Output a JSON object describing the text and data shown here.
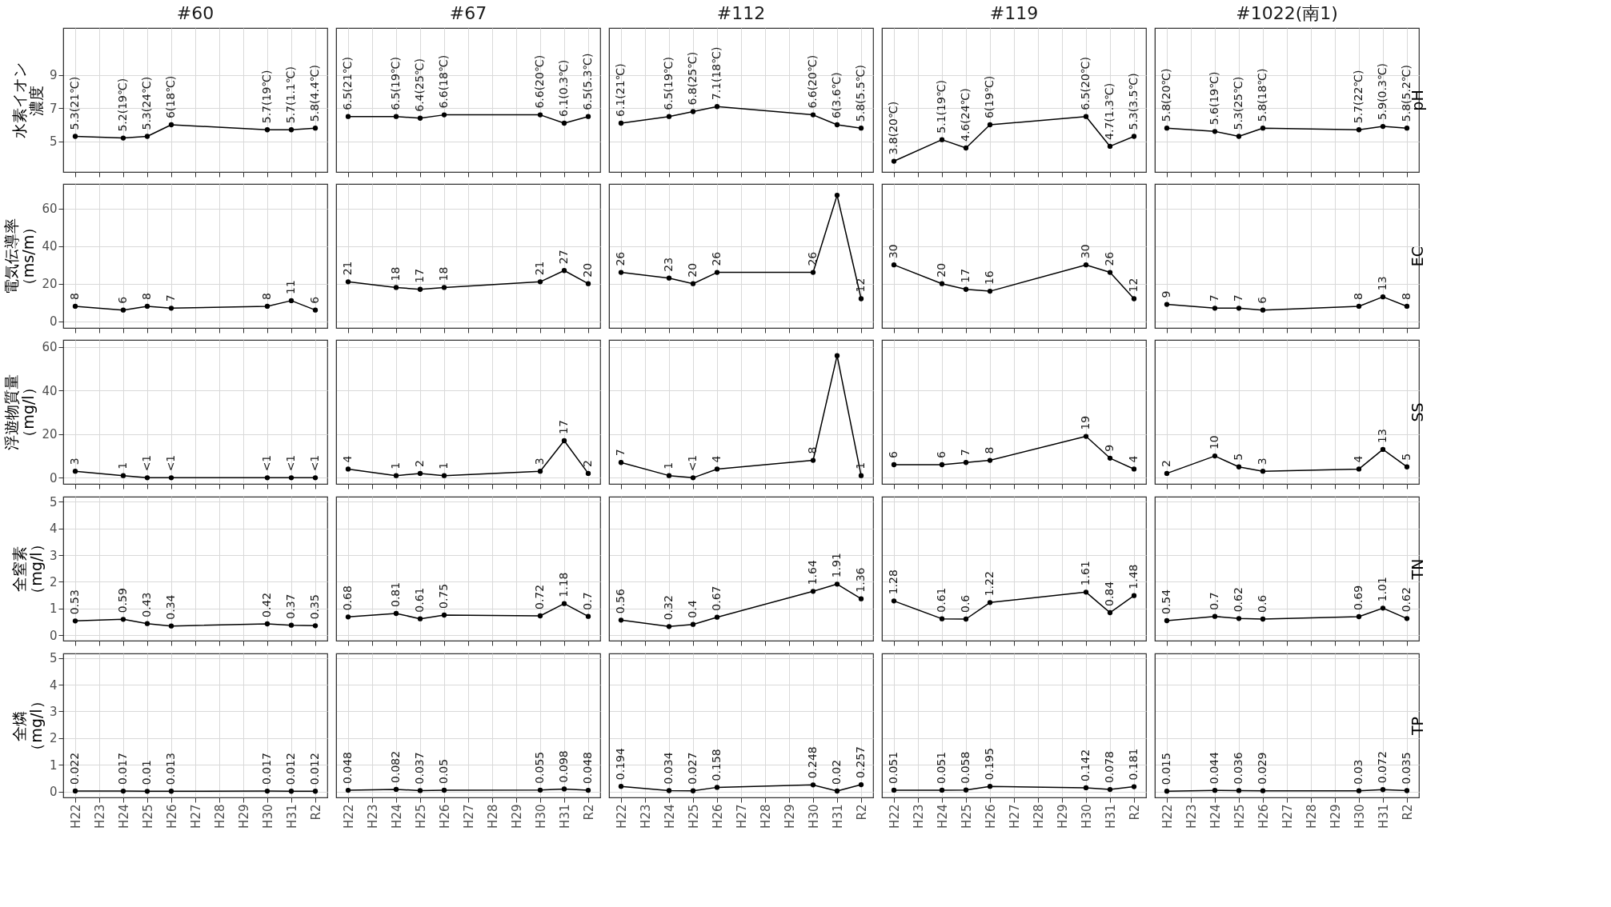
{
  "chart_data": [
    {
      "type": "line",
      "title": "#60",
      "ylabel": "水素イオン濃度",
      "tick_labels": "y",
      "categories": [
        "H22",
        "H23",
        "H24",
        "H25",
        "H26",
        "H27",
        "H28",
        "H29",
        "H30",
        "H31",
        "R2"
      ],
      "values": [
        5.3,
        null,
        5.2,
        5.3,
        6,
        null,
        null,
        null,
        5.7,
        5.7,
        5.8
      ],
      "value_labels": [
        "5.3(21℃)",
        null,
        "5.2(19℃)",
        "5.3(24℃)",
        "6(18℃)",
        null,
        null,
        null,
        "5.7(19℃)",
        "5.7(1.1℃)",
        "5.8(4.4℃)"
      ],
      "color": "#000000",
      "marker": "circle",
      "grid": true,
      "ylim": [
        3.15,
        11.85
      ],
      "yticks": [
        5,
        7,
        9
      ]
    },
    {
      "type": "line",
      "title": "#67",
      "tick_labels": false,
      "categories": [
        "H22",
        "H23",
        "H24",
        "H25",
        "H26",
        "H27",
        "H28",
        "H29",
        "H30",
        "H31",
        "R2"
      ],
      "values": [
        6.5,
        null,
        6.5,
        6.4,
        6.6,
        null,
        null,
        null,
        6.6,
        6.1,
        6.5
      ],
      "value_labels": [
        "6.5(21℃)",
        null,
        "6.5(19℃)",
        "6.4(25℃)",
        "6.6(18℃)",
        null,
        null,
        null,
        "6.6(20℃)",
        "6.1(0.3℃)",
        "6.5(5.3℃)"
      ],
      "color": "#000000",
      "marker": "circle",
      "grid": true,
      "ylim": [
        3.15,
        11.85
      ],
      "yticks": [
        5,
        7,
        9
      ]
    },
    {
      "type": "line",
      "title": "#112",
      "tick_labels": false,
      "categories": [
        "H22",
        "H23",
        "H24",
        "H25",
        "H26",
        "H27",
        "H28",
        "H29",
        "H30",
        "H31",
        "R2"
      ],
      "values": [
        6.1,
        null,
        6.5,
        6.8,
        7.1,
        null,
        null,
        null,
        6.6,
        6,
        5.8
      ],
      "value_labels": [
        "6.1(21℃)",
        null,
        "6.5(19℃)",
        "6.8(25℃)",
        "7.1(18℃)",
        null,
        null,
        null,
        "6.6(20℃)",
        "6(3.6℃)",
        "5.8(5.5℃)"
      ],
      "color": "#000000",
      "marker": "circle",
      "grid": true,
      "ylim": [
        3.15,
        11.85
      ],
      "yticks": [
        5,
        7,
        9
      ]
    },
    {
      "type": "line",
      "title": "#119",
      "tick_labels": false,
      "categories": [
        "H22",
        "H23",
        "H24",
        "H25",
        "H26",
        "H27",
        "H28",
        "H29",
        "H30",
        "H31",
        "R2"
      ],
      "values": [
        3.8,
        null,
        5.1,
        4.6,
        6,
        null,
        null,
        null,
        6.5,
        4.7,
        5.3
      ],
      "value_labels": [
        "3.8(20℃)",
        null,
        "5.1(19℃)",
        "4.6(24℃)",
        "6(19℃)",
        null,
        null,
        null,
        "6.5(20℃)",
        "4.7(1.3℃)",
        "5.3(3.5℃)"
      ],
      "color": "#000000",
      "marker": "circle",
      "grid": true,
      "ylim": [
        3.15,
        11.85
      ],
      "yticks": [
        5,
        7,
        9
      ]
    },
    {
      "type": "line",
      "title": "#1022(南1)",
      "y2label": "pH",
      "tick_labels": false,
      "categories": [
        "H22",
        "H23",
        "H24",
        "H25",
        "H26",
        "H27",
        "H28",
        "H29",
        "H30",
        "H31",
        "R2"
      ],
      "values": [
        5.8,
        null,
        5.6,
        5.3,
        5.8,
        null,
        null,
        null,
        5.7,
        5.9,
        5.8
      ],
      "value_labels": [
        "5.8(20℃)",
        null,
        "5.6(19℃)",
        "5.3(25℃)",
        "5.8(18℃)",
        null,
        null,
        null,
        "5.7(22℃)",
        "5.9(0.3℃)",
        "5.8(5.2℃)"
      ],
      "color": "#000000",
      "marker": "circle",
      "grid": true,
      "ylim": [
        3.15,
        11.85
      ],
      "yticks": [
        5,
        7,
        9
      ]
    },
    {
      "type": "line",
      "ylabel": "電気伝導率（ms/m）",
      "tick_labels": "y",
      "categories": [
        "H22",
        "H23",
        "H24",
        "H25",
        "H26",
        "H27",
        "H28",
        "H29",
        "H30",
        "H31",
        "R2"
      ],
      "values": [
        8,
        null,
        6,
        8,
        7,
        null,
        null,
        null,
        8,
        11,
        6
      ],
      "value_labels": [
        "8",
        null,
        "6",
        "8",
        "7",
        null,
        null,
        null,
        "8",
        "11",
        "6"
      ],
      "color": "#000000",
      "marker": "circle",
      "grid": true,
      "ylim": [
        -3.5,
        73
      ],
      "yticks": [
        0,
        20,
        40,
        60
      ]
    },
    {
      "type": "line",
      "tick_labels": false,
      "categories": [
        "H22",
        "H23",
        "H24",
        "H25",
        "H26",
        "H27",
        "H28",
        "H29",
        "H30",
        "H31",
        "R2"
      ],
      "values": [
        21,
        null,
        18,
        17,
        18,
        null,
        null,
        null,
        21,
        27,
        20
      ],
      "value_labels": [
        "21",
        null,
        "18",
        "17",
        "18",
        null,
        null,
        null,
        "21",
        "27",
        "20"
      ],
      "color": "#000000",
      "marker": "circle",
      "grid": true,
      "ylim": [
        -3.5,
        73
      ],
      "yticks": [
        0,
        20,
        40,
        60
      ]
    },
    {
      "type": "line",
      "tick_labels": false,
      "categories": [
        "H22",
        "H23",
        "H24",
        "H25",
        "H26",
        "H27",
        "H28",
        "H29",
        "H30",
        "H31",
        "R2"
      ],
      "values": [
        26,
        null,
        23,
        20,
        26,
        null,
        null,
        null,
        26,
        67,
        12
      ],
      "value_labels": [
        "26",
        null,
        "23",
        "20",
        "26",
        null,
        null,
        null,
        "26",
        null,
        "12"
      ],
      "color": "#000000",
      "marker": "circle",
      "grid": true,
      "ylim": [
        -3.5,
        73
      ],
      "yticks": [
        0,
        20,
        40,
        60
      ]
    },
    {
      "type": "line",
      "tick_labels": false,
      "categories": [
        "H22",
        "H23",
        "H24",
        "H25",
        "H26",
        "H27",
        "H28",
        "H29",
        "H30",
        "H31",
        "R2"
      ],
      "values": [
        30,
        null,
        20,
        17,
        16,
        null,
        null,
        null,
        30,
        26,
        12
      ],
      "value_labels": [
        "30",
        null,
        "20",
        "17",
        "16",
        null,
        null,
        null,
        "30",
        "26",
        "12"
      ],
      "color": "#000000",
      "marker": "circle",
      "grid": true,
      "ylim": [
        -3.5,
        73
      ],
      "yticks": [
        0,
        20,
        40,
        60
      ]
    },
    {
      "type": "line",
      "y2label": "EC",
      "tick_labels": false,
      "categories": [
        "H22",
        "H23",
        "H24",
        "H25",
        "H26",
        "H27",
        "H28",
        "H29",
        "H30",
        "H31",
        "R2"
      ],
      "values": [
        9,
        null,
        7,
        7,
        6,
        null,
        null,
        null,
        8,
        13,
        8
      ],
      "value_labels": [
        "9",
        null,
        "7",
        "7",
        "6",
        null,
        null,
        null,
        "8",
        "13",
        "8"
      ],
      "color": "#000000",
      "marker": "circle",
      "grid": true,
      "ylim": [
        -3.5,
        73
      ],
      "yticks": [
        0,
        20,
        40,
        60
      ]
    },
    {
      "type": "line",
      "ylabel": "浮遊物質量（mg/l）",
      "tick_labels": "y",
      "categories": [
        "H22",
        "H23",
        "H24",
        "H25",
        "H26",
        "H27",
        "H28",
        "H29",
        "H30",
        "H31",
        "R2"
      ],
      "values": [
        3,
        null,
        1,
        0,
        0,
        null,
        null,
        null,
        0,
        0,
        0
      ],
      "value_labels": [
        "3",
        null,
        "1",
        "<1",
        "<1",
        null,
        null,
        null,
        "<1",
        "<1",
        "<1"
      ],
      "color": "#000000",
      "marker": "circle",
      "grid": true,
      "ylim": [
        -2.8,
        63.2
      ],
      "yticks": [
        0,
        20,
        40,
        60
      ]
    },
    {
      "type": "line",
      "tick_labels": false,
      "categories": [
        "H22",
        "H23",
        "H24",
        "H25",
        "H26",
        "H27",
        "H28",
        "H29",
        "H30",
        "H31",
        "R2"
      ],
      "values": [
        4,
        null,
        1,
        2,
        1,
        null,
        null,
        null,
        3,
        17,
        2
      ],
      "value_labels": [
        "4",
        null,
        "1",
        "2",
        "1",
        null,
        null,
        null,
        "3",
        "17",
        "2"
      ],
      "color": "#000000",
      "marker": "circle",
      "grid": true,
      "ylim": [
        -2.8,
        63.2
      ],
      "yticks": [
        0,
        20,
        40,
        60
      ]
    },
    {
      "type": "line",
      "tick_labels": false,
      "categories": [
        "H22",
        "H23",
        "H24",
        "H25",
        "H26",
        "H27",
        "H28",
        "H29",
        "H30",
        "H31",
        "R2"
      ],
      "values": [
        7,
        null,
        1,
        0,
        4,
        null,
        null,
        null,
        8,
        56,
        1
      ],
      "value_labels": [
        "7",
        null,
        "1",
        "<1",
        "4",
        null,
        null,
        null,
        "8",
        null,
        "1"
      ],
      "color": "#000000",
      "marker": "circle",
      "grid": true,
      "ylim": [
        -2.8,
        63.2
      ],
      "yticks": [
        0,
        20,
        40,
        60
      ]
    },
    {
      "type": "line",
      "tick_labels": false,
      "categories": [
        "H22",
        "H23",
        "H24",
        "H25",
        "H26",
        "H27",
        "H28",
        "H29",
        "H30",
        "H31",
        "R2"
      ],
      "values": [
        6,
        null,
        6,
        7,
        8,
        null,
        null,
        null,
        19,
        9,
        4
      ],
      "value_labels": [
        "6",
        null,
        "6",
        "7",
        "8",
        null,
        null,
        null,
        "19",
        "9",
        "4"
      ],
      "color": "#000000",
      "marker": "circle",
      "grid": true,
      "ylim": [
        -2.8,
        63.2
      ],
      "yticks": [
        0,
        20,
        40,
        60
      ]
    },
    {
      "type": "line",
      "y2label": "SS",
      "tick_labels": false,
      "categories": [
        "H22",
        "H23",
        "H24",
        "H25",
        "H26",
        "H27",
        "H28",
        "H29",
        "H30",
        "H31",
        "R2"
      ],
      "values": [
        2,
        null,
        10,
        5,
        3,
        null,
        null,
        null,
        4,
        13,
        5
      ],
      "value_labels": [
        "2",
        null,
        "10",
        "5",
        "3",
        null,
        null,
        null,
        "4",
        "13",
        "5"
      ],
      "color": "#000000",
      "marker": "circle",
      "grid": true,
      "ylim": [
        -2.8,
        63.2
      ],
      "yticks": [
        0,
        20,
        40,
        60
      ]
    },
    {
      "type": "line",
      "ylabel": "全窒素（mg/l）",
      "tick_labels": "y",
      "categories": [
        "H22",
        "H23",
        "H24",
        "H25",
        "H26",
        "H27",
        "H28",
        "H29",
        "H30",
        "H31",
        "R2"
      ],
      "values": [
        0.53,
        null,
        0.59,
        0.43,
        0.34,
        null,
        null,
        null,
        0.42,
        0.37,
        0.35
      ],
      "value_labels": [
        "0.53",
        null,
        "0.59",
        "0.43",
        "0.34",
        null,
        null,
        null,
        "0.42",
        "0.37",
        "0.35"
      ],
      "color": "#000000",
      "marker": "circle",
      "grid": true,
      "ylim": [
        -0.21,
        5.19
      ],
      "yticks": [
        0,
        1,
        2,
        3,
        4,
        5
      ]
    },
    {
      "type": "line",
      "tick_labels": false,
      "categories": [
        "H22",
        "H23",
        "H24",
        "H25",
        "H26",
        "H27",
        "H28",
        "H29",
        "H30",
        "H31",
        "R2"
      ],
      "values": [
        0.68,
        null,
        0.81,
        0.61,
        0.75,
        null,
        null,
        null,
        0.72,
        1.18,
        0.7
      ],
      "value_labels": [
        "0.68",
        null,
        "0.81",
        "0.61",
        "0.75",
        null,
        null,
        null,
        "0.72",
        "1.18",
        "0.7"
      ],
      "color": "#000000",
      "marker": "circle",
      "grid": true,
      "ylim": [
        -0.21,
        5.19
      ],
      "yticks": [
        0,
        1,
        2,
        3,
        4,
        5
      ]
    },
    {
      "type": "line",
      "tick_labels": false,
      "categories": [
        "H22",
        "H23",
        "H24",
        "H25",
        "H26",
        "H27",
        "H28",
        "H29",
        "H30",
        "H31",
        "R2"
      ],
      "values": [
        0.56,
        null,
        0.32,
        0.4,
        0.67,
        null,
        null,
        null,
        1.64,
        1.91,
        1.36
      ],
      "value_labels": [
        "0.56",
        null,
        "0.32",
        "0.4",
        "0.67",
        null,
        null,
        null,
        "1.64",
        "1.91",
        "1.36"
      ],
      "color": "#000000",
      "marker": "circle",
      "grid": true,
      "ylim": [
        -0.21,
        5.19
      ],
      "yticks": [
        0,
        1,
        2,
        3,
        4,
        5
      ]
    },
    {
      "type": "line",
      "tick_labels": false,
      "categories": [
        "H22",
        "H23",
        "H24",
        "H25",
        "H26",
        "H27",
        "H28",
        "H29",
        "H30",
        "H31",
        "R2"
      ],
      "values": [
        1.28,
        null,
        0.61,
        0.6,
        1.22,
        null,
        null,
        null,
        1.61,
        0.84,
        1.48
      ],
      "value_labels": [
        "1.28",
        null,
        "0.61",
        "0.6",
        "1.22",
        null,
        null,
        null,
        "1.61",
        "0.84",
        "1.48"
      ],
      "color": "#000000",
      "marker": "circle",
      "grid": true,
      "ylim": [
        -0.21,
        5.19
      ],
      "yticks": [
        0,
        1,
        2,
        3,
        4,
        5
      ]
    },
    {
      "type": "line",
      "y2label": "TN",
      "tick_labels": false,
      "categories": [
        "H22",
        "H23",
        "H24",
        "H25",
        "H26",
        "H27",
        "H28",
        "H29",
        "H30",
        "H31",
        "R2"
      ],
      "values": [
        0.54,
        null,
        0.7,
        0.62,
        0.6,
        null,
        null,
        null,
        0.69,
        1.01,
        0.62
      ],
      "value_labels": [
        "0.54",
        null,
        "0.7",
        "0.62",
        "0.6",
        null,
        null,
        null,
        "0.69",
        "1.01",
        "0.62"
      ],
      "color": "#000000",
      "marker": "circle",
      "grid": true,
      "ylim": [
        -0.21,
        5.19
      ],
      "yticks": [
        0,
        1,
        2,
        3,
        4,
        5
      ]
    },
    {
      "type": "line",
      "ylabel": "全燐（mg/l）",
      "categories": [
        "H22",
        "H23",
        "H24",
        "H25",
        "H26",
        "H27",
        "H28",
        "H29",
        "H30",
        "H31",
        "R2"
      ],
      "values": [
        0.022,
        null,
        0.017,
        0.01,
        0.013,
        null,
        null,
        null,
        0.017,
        0.012,
        0.012
      ],
      "value_labels": [
        "0.022",
        null,
        "0.017",
        "0.01",
        "0.013",
        null,
        null,
        null,
        "0.017",
        "0.012",
        "0.012"
      ],
      "color": "#000000",
      "marker": "circle",
      "grid": true,
      "ylim": [
        -0.22,
        5.17
      ],
      "yticks": [
        0,
        1,
        2,
        3,
        4,
        5
      ]
    },
    {
      "type": "line",
      "tick_labels": "x",
      "categories": [
        "H22",
        "H23",
        "H24",
        "H25",
        "H26",
        "H27",
        "H28",
        "H29",
        "H30",
        "H31",
        "R2"
      ],
      "values": [
        0.048,
        null,
        0.082,
        0.037,
        0.05,
        null,
        null,
        null,
        0.055,
        0.098,
        0.048
      ],
      "value_labels": [
        "0.048",
        null,
        "0.082",
        "0.037",
        "0.05",
        null,
        null,
        null,
        "0.055",
        "0.098",
        "0.048"
      ],
      "color": "#000000",
      "marker": "circle",
      "grid": true,
      "ylim": [
        -0.22,
        5.17
      ],
      "yticks": [
        0,
        1,
        2,
        3,
        4,
        5
      ]
    },
    {
      "type": "line",
      "tick_labels": "x",
      "categories": [
        "H22",
        "H23",
        "H24",
        "H25",
        "H26",
        "H27",
        "H28",
        "H29",
        "H30",
        "H31",
        "R2"
      ],
      "values": [
        0.194,
        null,
        0.034,
        0.027,
        0.158,
        null,
        null,
        null,
        0.248,
        0.02,
        0.257
      ],
      "value_labels": [
        "0.194",
        null,
        "0.034",
        "0.027",
        "0.158",
        null,
        null,
        null,
        "0.248",
        "0.02",
        "0.257"
      ],
      "color": "#000000",
      "marker": "circle",
      "grid": true,
      "ylim": [
        -0.22,
        5.17
      ],
      "yticks": [
        0,
        1,
        2,
        3,
        4,
        5
      ]
    },
    {
      "type": "line",
      "tick_labels": "x",
      "categories": [
        "H22",
        "H23",
        "H24",
        "H25",
        "H26",
        "H27",
        "H28",
        "H29",
        "H30",
        "H31",
        "R2"
      ],
      "values": [
        0.051,
        null,
        0.051,
        0.058,
        0.195,
        null,
        null,
        null,
        0.142,
        0.078,
        0.181
      ],
      "value_labels": [
        "0.051",
        null,
        "0.051",
        "0.058",
        "0.195",
        null,
        null,
        null,
        "0.142",
        "0.078",
        "0.181"
      ],
      "color": "#000000",
      "marker": "circle",
      "grid": true,
      "ylim": [
        -0.22,
        5.17
      ],
      "yticks": [
        0,
        1,
        2,
        3,
        4,
        5
      ]
    },
    {
      "type": "line",
      "y2label": "TP",
      "tick_labels": "x",
      "categories": [
        "H22",
        "H23",
        "H24",
        "H25",
        "H26",
        "H27",
        "H28",
        "H29",
        "H30",
        "H31",
        "R2"
      ],
      "values": [
        0.015,
        null,
        0.044,
        0.036,
        0.029,
        null,
        null,
        null,
        0.03,
        0.072,
        0.035
      ],
      "value_labels": [
        "0.015",
        null,
        "0.044",
        "0.036",
        "0.029",
        null,
        null,
        null,
        "0.03",
        "0.072",
        "0.035"
      ],
      "color": "#000000",
      "marker": "circle",
      "grid": true,
      "ylim": [
        -0.22,
        5.17
      ],
      "yticks": [
        0,
        1,
        2,
        3,
        4,
        5
      ]
    }
  ]
}
